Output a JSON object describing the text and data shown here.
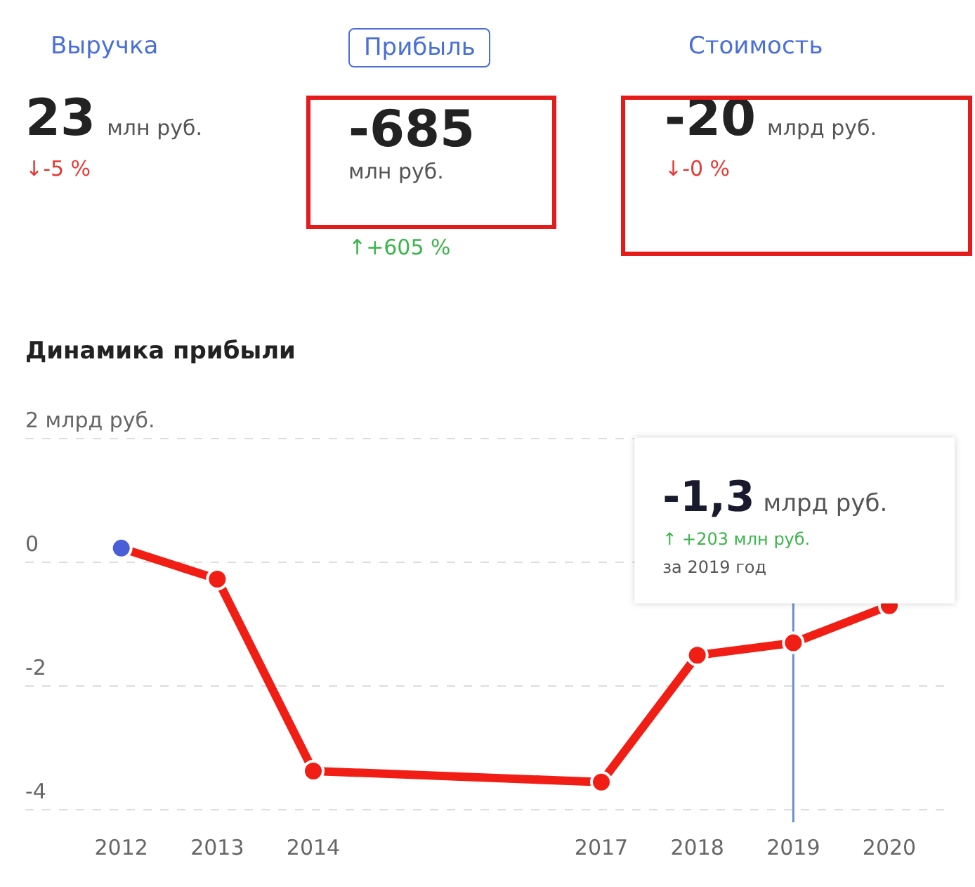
{
  "chart_data": [
    {
      "type": "other",
      "annotations": [
        "Выручка",
        "23",
        "млн руб.",
        "↓-5 %",
        "Прибыль",
        "-685",
        "млн руб.",
        "↑+605 %",
        "Стоимость",
        "-20",
        "млрд руб.",
        "↓-0 %"
      ]
    },
    {
      "type": "line",
      "title": "Динамика прибыли",
      "x": [
        2012,
        2013,
        2014,
        2017,
        2018,
        2019,
        2020
      ],
      "series": [
        {
          "color": "#f01e14",
          "colors": [
            "#4a5ed8",
            "#f01e14",
            "#f01e14",
            "#f01e14",
            "#f01e14",
            "#f01e14",
            "#f01e14"
          ],
          "values": [
            0.23,
            -0.27,
            -3.37,
            -3.55,
            -1.5,
            -1.3,
            -0.7
          ]
        }
      ],
      "xlim": [
        2011,
        2020.6
      ],
      "xticks": [
        2012,
        2013,
        2014,
        2017,
        2018,
        2019,
        2020
      ],
      "ylim": [
        -4.2,
        2
      ],
      "yticks": [
        {
          "value": 2,
          "label": "2 млрд руб."
        },
        0,
        -2,
        -4
      ],
      "grid": "y",
      "marker": "circle",
      "line_style": "solid",
      "legend": false,
      "ref_lines": [
        {
          "axis": "x",
          "value": 2019,
          "color": "#6d8fc7"
        }
      ],
      "annotations": [
        {
          "text": "-1,3 млрд руб.\n↑ +203 млн руб.\nза 2019 год",
          "x": 2019,
          "y": -1.3
        }
      ]
    }
  ]
}
